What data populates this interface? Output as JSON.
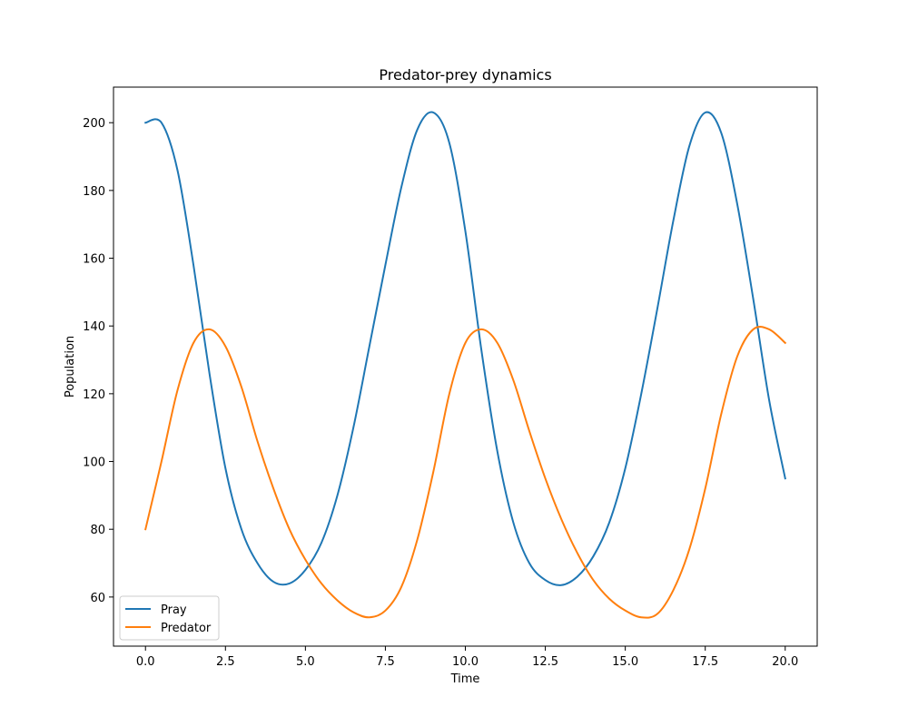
{
  "chart_data": {
    "type": "line",
    "title": "Predator-prey dynamics",
    "xlabel": "Time",
    "ylabel": "Population",
    "xlim": [
      -1.0,
      21.0
    ],
    "ylim": [
      45.5,
      210.5
    ],
    "xticks": [
      0.0,
      2.5,
      5.0,
      7.5,
      10.0,
      12.5,
      15.0,
      17.5,
      20.0
    ],
    "xtick_labels": [
      "0.0",
      "2.5",
      "5.0",
      "7.5",
      "10.0",
      "12.5",
      "15.0",
      "17.5",
      "20.0"
    ],
    "yticks": [
      60,
      80,
      100,
      120,
      140,
      160,
      180,
      200
    ],
    "ytick_labels": [
      "60",
      "80",
      "100",
      "120",
      "140",
      "160",
      "180",
      "200"
    ],
    "grid": false,
    "legend_position": "lower-left",
    "x": [
      0.0,
      0.5,
      1.0,
      1.5,
      2.0,
      2.5,
      3.0,
      3.5,
      4.0,
      4.5,
      5.0,
      5.5,
      6.0,
      6.5,
      7.0,
      7.5,
      8.0,
      8.5,
      9.0,
      9.5,
      10.0,
      10.5,
      11.0,
      11.5,
      12.0,
      12.5,
      13.0,
      13.5,
      14.0,
      14.5,
      15.0,
      15.5,
      16.0,
      16.5,
      17.0,
      17.5,
      18.0,
      18.5,
      19.0,
      19.5,
      20.0
    ],
    "series": [
      {
        "name": "Pray",
        "color": "#1f77b4",
        "values": [
          200,
          200,
          186,
          158,
          126,
          98,
          80,
          70,
          64.5,
          64,
          68,
          76,
          90,
          110,
          134,
          158,
          181,
          198,
          203,
          194,
          168,
          133,
          103,
          82,
          70,
          65,
          63.5,
          66,
          72,
          82,
          98,
          120,
          145,
          171,
          193,
          203,
          197,
          176,
          148,
          118,
          95
        ]
      },
      {
        "name": "Predator",
        "color": "#ff7f0e",
        "values": [
          80,
          100,
          121,
          135,
          139,
          134,
          122,
          106,
          92,
          80,
          71,
          64,
          59,
          55.5,
          54,
          56,
          63,
          77,
          97,
          120,
          135,
          139,
          135,
          124,
          109,
          95,
          83,
          73,
          65,
          59.5,
          56,
          54,
          55,
          62,
          74,
          92,
          114,
          131,
          139,
          139,
          135
        ]
      }
    ]
  }
}
